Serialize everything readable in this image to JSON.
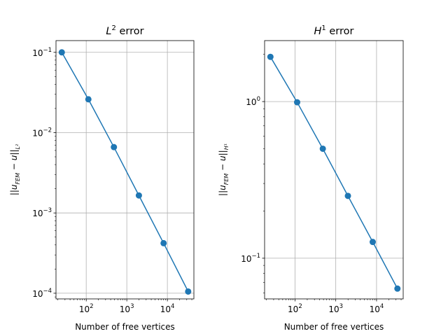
{
  "chart_data": [
    {
      "type": "line",
      "title": "L² error",
      "title_main": "L",
      "title_sup": "2",
      "title_rest": " error",
      "xlabel": "Number of free vertices",
      "ylabel": "||u_FEM − u||_L²",
      "ylabel_parts": {
        "open": "||u",
        "sub1": "FEM",
        "mid": " − u||",
        "sub2": "L²"
      },
      "xscale": "log",
      "yscale": "log",
      "xlim": [
        18,
        45000
      ],
      "ylim": [
        8.5e-05,
        0.14
      ],
      "grid": true,
      "x_ticks": [
        {
          "value": 100,
          "base": "10",
          "exp": "2"
        },
        {
          "value": 1000,
          "base": "10",
          "exp": "3"
        },
        {
          "value": 10000,
          "base": "10",
          "exp": "4"
        }
      ],
      "y_ticks": [
        {
          "value": 0.1,
          "base": "10",
          "exp": "−1"
        },
        {
          "value": 0.01,
          "base": "10",
          "exp": "−2"
        },
        {
          "value": 0.001,
          "base": "10",
          "exp": "−3"
        },
        {
          "value": 0.0001,
          "base": "10",
          "exp": "−4"
        }
      ],
      "series": [
        {
          "color": "#1f77b4",
          "x": [
            25,
            113,
            481,
            1985,
            8065,
            32513
          ],
          "y": [
            0.1,
            0.026,
            0.0066,
            0.00165,
            0.00042,
            0.000105
          ]
        }
      ]
    },
    {
      "type": "line",
      "title": "H¹ error",
      "title_main": "H",
      "title_sup": "1",
      "title_rest": " error",
      "xlabel": "Number of free vertices",
      "ylabel": "||u_FEM − u||_H¹",
      "ylabel_parts": {
        "open": "||u",
        "sub1": "FEM",
        "mid": " − u||",
        "sub2": "H¹"
      },
      "xscale": "log",
      "yscale": "log",
      "xlim": [
        18,
        45000
      ],
      "ylim": [
        0.055,
        2.45
      ],
      "grid": true,
      "x_ticks": [
        {
          "value": 100,
          "base": "10",
          "exp": "2"
        },
        {
          "value": 1000,
          "base": "10",
          "exp": "3"
        },
        {
          "value": 10000,
          "base": "10",
          "exp": "4"
        }
      ],
      "y_ticks": [
        {
          "value": 1,
          "base": "10",
          "exp": "0"
        },
        {
          "value": 0.1,
          "base": "10",
          "exp": "−1"
        }
      ],
      "series": [
        {
          "color": "#1f77b4",
          "x": [
            25,
            113,
            481,
            1985,
            8065,
            32513
          ],
          "y": [
            1.93,
            0.99,
            0.5,
            0.25,
            0.127,
            0.064
          ]
        }
      ]
    }
  ]
}
